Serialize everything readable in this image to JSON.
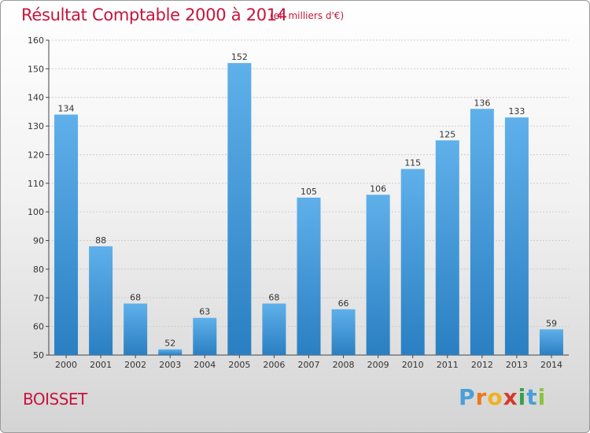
{
  "title": "Résultat Comptable 2000 à 2014",
  "subtitle": "(en milliers d'€)",
  "city": "BOISSET",
  "logo": {
    "text": "Proxiti",
    "letters": [
      {
        "ch": "P",
        "color": "#4a9fd8"
      },
      {
        "ch": "r",
        "color": "#e87a1e"
      },
      {
        "ch": "o",
        "color": "#f2b01e"
      },
      {
        "ch": "x",
        "color": "#d63a2a"
      },
      {
        "ch": "i",
        "color": "#3aa04a"
      },
      {
        "ch": "t",
        "color": "#4a9fd8"
      },
      {
        "ch": "i",
        "color": "#8cc43c"
      }
    ]
  },
  "colors": {
    "title": "#c8143c",
    "bar_top": "#5fb0ea",
    "bar_bottom": "#2a7fc2",
    "grid": "#cccccc"
  },
  "chart_data": {
    "type": "bar",
    "categories": [
      "2000",
      "2001",
      "2002",
      "2003",
      "2004",
      "2005",
      "2006",
      "2007",
      "2008",
      "2009",
      "2010",
      "2011",
      "2012",
      "2013",
      "2014"
    ],
    "values": [
      134,
      88,
      68,
      52,
      63,
      152,
      68,
      105,
      66,
      106,
      115,
      125,
      136,
      133,
      59
    ],
    "ylim": [
      50,
      160
    ],
    "yticks": [
      50,
      60,
      70,
      80,
      90,
      100,
      110,
      120,
      130,
      140,
      150,
      160
    ],
    "grid": true
  }
}
